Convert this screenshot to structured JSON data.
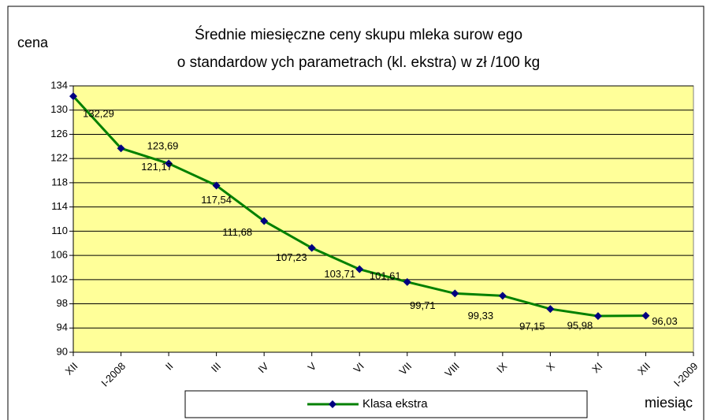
{
  "chart_data": {
    "type": "line",
    "title": [
      "Średnie miesięczne ceny skupu mleka surow ego",
      "o standardow ych parametrach (kl. ekstra) w  zł /100 kg"
    ],
    "y_label": "cena",
    "x_label": "miesiąc",
    "categories": [
      "XII",
      "I-2008",
      "II",
      "III",
      "IV",
      "V",
      "VI",
      "VII",
      "VIII",
      "IX",
      "X",
      "XI",
      "XII",
      "I-2009"
    ],
    "series": [
      {
        "name": "Klasa ekstra",
        "color": "#008000",
        "marker_color": "#000080",
        "values": [
          132.29,
          123.69,
          121.17,
          117.54,
          111.68,
          107.23,
          103.71,
          101.61,
          99.71,
          99.33,
          97.15,
          95.98,
          96.03,
          null
        ],
        "value_labels": [
          "132,29",
          "123,69",
          "121,17",
          "117,54",
          "111,68",
          "107,23",
          "103,71",
          "101,61",
          "99,71",
          "99,33",
          "97,15",
          "95,98",
          "96,03",
          null
        ]
      }
    ],
    "ylim": [
      90,
      134
    ],
    "yticks": [
      90,
      94,
      98,
      102,
      106,
      110,
      114,
      118,
      122,
      126,
      130,
      134
    ],
    "grid": true,
    "legend": "bottom",
    "plot_background": "#ffff99"
  }
}
